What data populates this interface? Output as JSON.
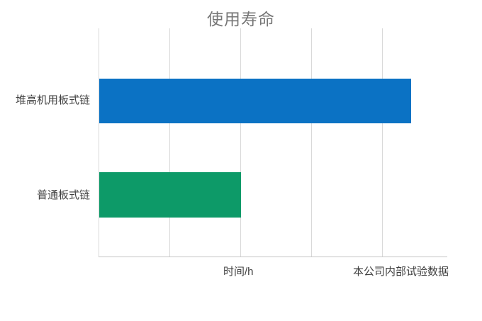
{
  "chart_data": {
    "type": "bar",
    "orientation": "horizontal",
    "title": "使用寿命",
    "categories": [
      "堆高机用板式链",
      "普通板式链"
    ],
    "values": [
      4.4,
      2.0
    ],
    "bar_colors": [
      "#0B72C4",
      "#0D9A68"
    ],
    "xlabel": "时间/h",
    "annotation": "本公司内部试验数据",
    "xlim": [
      0,
      4.92
    ],
    "gridline_positions": [
      0,
      1,
      2,
      3,
      4
    ],
    "tick_labels": [],
    "grid": true,
    "legend": false
  },
  "colors": {
    "background": "#FFFFFF",
    "gridline": "#D9D9D9",
    "axis_line": "#C4C4C4",
    "title_text": "#777777",
    "label_text": "#3F3F3F"
  }
}
